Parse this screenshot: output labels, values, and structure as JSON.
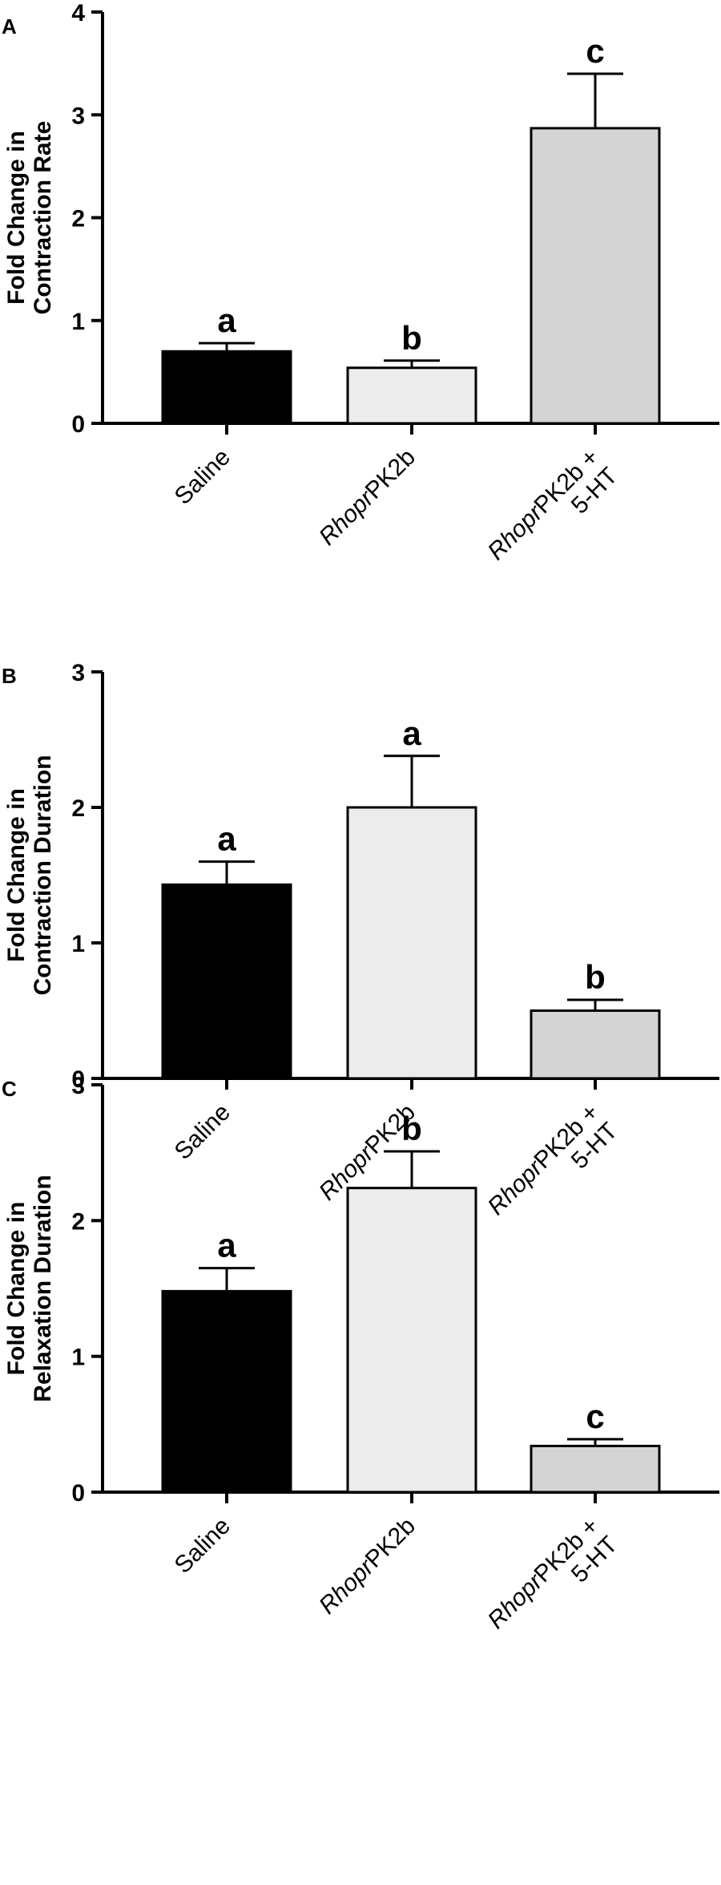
{
  "chart_data": [
    {
      "type": "bar",
      "panel": "A",
      "ylabel_lines": [
        "Fold Change in",
        "Contraction Rate"
      ],
      "ylim": [
        0,
        4
      ],
      "yticks": [
        "0",
        "1",
        "2",
        "3",
        "4"
      ],
      "categories": [
        [
          [
            "Saline",
            false
          ]
        ],
        [
          [
            "Rhopr",
            true
          ],
          [
            "PK2b",
            false
          ]
        ],
        [
          [
            "Rhopr",
            true
          ],
          [
            "PK2b +",
            false
          ],
          [
            "|5-HT",
            false
          ]
        ]
      ],
      "values": [
        0.7,
        0.54,
        2.87
      ],
      "errors": [
        0.08,
        0.07,
        0.53
      ],
      "significance": [
        "a",
        "b",
        "c"
      ],
      "colors": [
        "#000000",
        "#ececec",
        "#d4d4d4"
      ]
    },
    {
      "type": "bar",
      "panel": "B",
      "ylabel_lines": [
        "Fold Change in",
        "Contraction Duration"
      ],
      "ylim": [
        0,
        3
      ],
      "yticks": [
        "0",
        "1",
        "2",
        "3"
      ],
      "categories": [
        [
          [
            "Saline",
            false
          ]
        ],
        [
          [
            "Rhopr",
            true
          ],
          [
            "PK2b",
            false
          ]
        ],
        [
          [
            "Rhopr",
            true
          ],
          [
            "PK2b +",
            false
          ],
          [
            "|5-HT",
            false
          ]
        ]
      ],
      "values": [
        1.43,
        2.0,
        0.5
      ],
      "errors": [
        0.17,
        0.38,
        0.08
      ],
      "significance": [
        "a",
        "a",
        "b"
      ],
      "colors": [
        "#000000",
        "#ececec",
        "#d4d4d4"
      ]
    },
    {
      "type": "bar",
      "panel": "C",
      "ylabel_lines": [
        "Fold Change in",
        "Relaxation Duration"
      ],
      "ylim": [
        0,
        3
      ],
      "yticks": [
        "0",
        "1",
        "2",
        "3"
      ],
      "categories": [
        [
          [
            "Saline",
            false
          ]
        ],
        [
          [
            "Rhopr",
            true
          ],
          [
            "PK2b",
            false
          ]
        ],
        [
          [
            "Rhopr",
            true
          ],
          [
            "PK2b +",
            false
          ],
          [
            "|5-HT",
            false
          ]
        ]
      ],
      "values": [
        1.48,
        2.24,
        0.34
      ],
      "errors": [
        0.17,
        0.27,
        0.05
      ],
      "significance": [
        "a",
        "b",
        "c"
      ],
      "colors": [
        "#000000",
        "#ececec",
        "#d4d4d4"
      ]
    }
  ]
}
